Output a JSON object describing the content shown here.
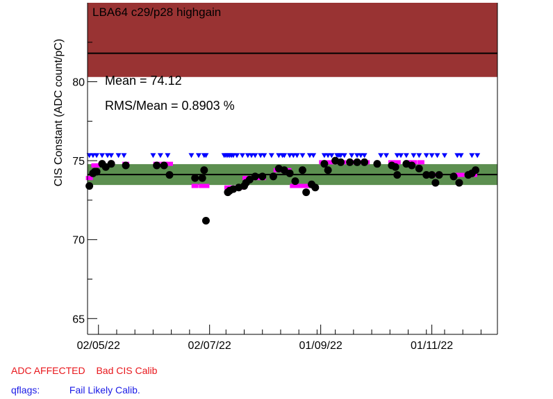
{
  "chart_data": {
    "type": "scatter",
    "title": "LBA64 c29/p28 highgain",
    "ylabel": "CIS Constant (ADC count/pC)",
    "xlabel": "",
    "ylim": [
      64,
      85
    ],
    "yticks": [
      65,
      70,
      75,
      80
    ],
    "xlim": [
      "2022-04-26",
      "2022-12-07"
    ],
    "xticks": [
      {
        "date": "2022-05-02",
        "label": "02/05/22"
      },
      {
        "date": "2022-07-02",
        "label": "02/07/22"
      },
      {
        "date": "2022-09-01",
        "label": "01/09/22"
      },
      {
        "date": "2022-11-01",
        "label": "01/11/22"
      }
    ],
    "mean": 74.12,
    "mean_label": "Mean = 74.12",
    "rms_label": "RMS/Mean = 0.8903 %",
    "band": [
      73.46,
      74.78
    ],
    "adc_affected_band": [
      80.3,
      85
    ],
    "adc_affected_line": 81.8,
    "grid": false,
    "colors": {
      "points": "#000000",
      "bad_cis": "#ff00ff",
      "fail_likely": "#0000ff",
      "band": "#5c8f50",
      "adc_band": "#993333",
      "mean_line": "#000000"
    },
    "series": [
      {
        "name": "CIS Constant",
        "marker": "circle",
        "points": [
          {
            "x": "2022-04-27",
            "y": 73.4
          },
          {
            "x": "2022-04-29",
            "y": 74.2
          },
          {
            "x": "2022-04-30",
            "y": 74.3
          },
          {
            "x": "2022-05-01",
            "y": 74.3
          },
          {
            "x": "2022-05-04",
            "y": 74.8
          },
          {
            "x": "2022-05-06",
            "y": 74.6
          },
          {
            "x": "2022-05-09",
            "y": 74.8
          },
          {
            "x": "2022-05-17",
            "y": 74.7
          },
          {
            "x": "2022-06-03",
            "y": 74.7
          },
          {
            "x": "2022-06-07",
            "y": 74.7
          },
          {
            "x": "2022-06-10",
            "y": 74.1
          },
          {
            "x": "2022-06-24",
            "y": 73.9
          },
          {
            "x": "2022-06-28",
            "y": 73.9
          },
          {
            "x": "2022-06-29",
            "y": 74.4
          },
          {
            "x": "2022-06-30",
            "y": 71.2
          },
          {
            "x": "2022-07-12",
            "y": 73.0
          },
          {
            "x": "2022-07-13",
            "y": 73.1
          },
          {
            "x": "2022-07-15",
            "y": 73.2
          },
          {
            "x": "2022-07-18",
            "y": 73.3
          },
          {
            "x": "2022-07-21",
            "y": 73.4
          },
          {
            "x": "2022-07-22",
            "y": 73.6
          },
          {
            "x": "2022-07-24",
            "y": 73.8
          },
          {
            "x": "2022-07-27",
            "y": 74.0
          },
          {
            "x": "2022-07-31",
            "y": 74.0
          },
          {
            "x": "2022-08-06",
            "y": 74.0
          },
          {
            "x": "2022-08-09",
            "y": 74.5
          },
          {
            "x": "2022-08-12",
            "y": 74.4
          },
          {
            "x": "2022-08-15",
            "y": 74.2
          },
          {
            "x": "2022-08-18",
            "y": 73.7
          },
          {
            "x": "2022-08-22",
            "y": 74.4
          },
          {
            "x": "2022-08-24",
            "y": 73.0
          },
          {
            "x": "2022-08-27",
            "y": 73.5
          },
          {
            "x": "2022-08-29",
            "y": 73.3
          },
          {
            "x": "2022-09-03",
            "y": 74.8
          },
          {
            "x": "2022-09-05",
            "y": 74.4
          },
          {
            "x": "2022-09-09",
            "y": 75.0
          },
          {
            "x": "2022-09-12",
            "y": 74.9
          },
          {
            "x": "2022-09-17",
            "y": 74.9
          },
          {
            "x": "2022-09-21",
            "y": 74.9
          },
          {
            "x": "2022-09-25",
            "y": 74.9
          },
          {
            "x": "2022-10-02",
            "y": 74.8
          },
          {
            "x": "2022-10-10",
            "y": 74.7
          },
          {
            "x": "2022-10-12",
            "y": 74.6
          },
          {
            "x": "2022-10-13",
            "y": 74.1
          },
          {
            "x": "2022-10-18",
            "y": 74.8
          },
          {
            "x": "2022-10-21",
            "y": 74.7
          },
          {
            "x": "2022-10-25",
            "y": 74.5
          },
          {
            "x": "2022-10-29",
            "y": 74.1
          },
          {
            "x": "2022-11-01",
            "y": 74.1
          },
          {
            "x": "2022-11-03",
            "y": 73.6
          },
          {
            "x": "2022-11-05",
            "y": 74.1
          },
          {
            "x": "2022-11-13",
            "y": 74.0
          },
          {
            "x": "2022-11-16",
            "y": 73.6
          },
          {
            "x": "2022-11-21",
            "y": 74.1
          },
          {
            "x": "2022-11-23",
            "y": 74.2
          },
          {
            "x": "2022-11-25",
            "y": 74.4
          }
        ]
      },
      {
        "name": "Bad CIS Calib",
        "marker": "square",
        "points": [
          {
            "x": "2022-04-27",
            "y": 73.9
          },
          {
            "x": "2022-04-30",
            "y": 74.7
          },
          {
            "x": "2022-05-01",
            "y": 74.7
          },
          {
            "x": "2022-05-04",
            "y": 74.8
          },
          {
            "x": "2022-05-09",
            "y": 74.8
          },
          {
            "x": "2022-05-17",
            "y": 74.8
          },
          {
            "x": "2022-06-03",
            "y": 74.8
          },
          {
            "x": "2022-06-07",
            "y": 74.8
          },
          {
            "x": "2022-06-10",
            "y": 74.8
          },
          {
            "x": "2022-06-24",
            "y": 73.4
          },
          {
            "x": "2022-06-28",
            "y": 73.4
          },
          {
            "x": "2022-06-30",
            "y": 73.4
          },
          {
            "x": "2022-07-12",
            "y": 73.3
          },
          {
            "x": "2022-07-14",
            "y": 73.3
          },
          {
            "x": "2022-07-16",
            "y": 73.3
          },
          {
            "x": "2022-07-19",
            "y": 73.3
          },
          {
            "x": "2022-07-22",
            "y": 73.9
          },
          {
            "x": "2022-07-25",
            "y": 73.9
          },
          {
            "x": "2022-07-28",
            "y": 73.9
          },
          {
            "x": "2022-07-31",
            "y": 73.9
          },
          {
            "x": "2022-08-08",
            "y": 74.4
          },
          {
            "x": "2022-08-11",
            "y": 74.4
          },
          {
            "x": "2022-08-14",
            "y": 74.4
          },
          {
            "x": "2022-08-17",
            "y": 73.4
          },
          {
            "x": "2022-08-20",
            "y": 73.4
          },
          {
            "x": "2022-08-23",
            "y": 73.4
          },
          {
            "x": "2022-08-26",
            "y": 73.4
          },
          {
            "x": "2022-09-02",
            "y": 74.9
          },
          {
            "x": "2022-09-06",
            "y": 74.9
          },
          {
            "x": "2022-09-10",
            "y": 74.9
          },
          {
            "x": "2022-09-13",
            "y": 74.9
          },
          {
            "x": "2022-09-18",
            "y": 74.9
          },
          {
            "x": "2022-09-22",
            "y": 74.9
          },
          {
            "x": "2022-09-26",
            "y": 74.9
          },
          {
            "x": "2022-10-10",
            "y": 74.9
          },
          {
            "x": "2022-10-13",
            "y": 74.9
          },
          {
            "x": "2022-10-19",
            "y": 74.9
          },
          {
            "x": "2022-10-22",
            "y": 74.9
          },
          {
            "x": "2022-10-26",
            "y": 74.9
          },
          {
            "x": "2022-10-30",
            "y": 74.1
          },
          {
            "x": "2022-11-02",
            "y": 74.1
          },
          {
            "x": "2022-11-05",
            "y": 74.1
          },
          {
            "x": "2022-11-14",
            "y": 74.1
          },
          {
            "x": "2022-11-17",
            "y": 74.1
          },
          {
            "x": "2022-11-22",
            "y": 74.1
          },
          {
            "x": "2022-11-24",
            "y": 74.1
          }
        ]
      },
      {
        "name": "Fail Likely Calib.",
        "marker": "triangle-down",
        "y": 75.3,
        "x": [
          "2022-04-27",
          "2022-04-29",
          "2022-05-01",
          "2022-05-04",
          "2022-05-07",
          "2022-05-09",
          "2022-05-13",
          "2022-05-16",
          "2022-06-01",
          "2022-06-05",
          "2022-06-09",
          "2022-06-22",
          "2022-06-26",
          "2022-06-29",
          "2022-06-30",
          "2022-07-10",
          "2022-07-11",
          "2022-07-12",
          "2022-07-13",
          "2022-07-14",
          "2022-07-15",
          "2022-07-17",
          "2022-07-20",
          "2022-07-23",
          "2022-07-25",
          "2022-07-27",
          "2022-07-30",
          "2022-08-01",
          "2022-08-05",
          "2022-08-09",
          "2022-08-11",
          "2022-08-12",
          "2022-08-15",
          "2022-08-17",
          "2022-08-19",
          "2022-08-22",
          "2022-08-26",
          "2022-08-28",
          "2022-09-03",
          "2022-09-05",
          "2022-09-07",
          "2022-09-10",
          "2022-09-11",
          "2022-09-12",
          "2022-09-14",
          "2022-09-18",
          "2022-09-21",
          "2022-09-23",
          "2022-09-25",
          "2022-10-04",
          "2022-10-07",
          "2022-10-13",
          "2022-10-15",
          "2022-10-18",
          "2022-10-22",
          "2022-10-25",
          "2022-10-29",
          "2022-11-01",
          "2022-11-04",
          "2022-11-08",
          "2022-11-15",
          "2022-11-17",
          "2022-11-23",
          "2022-11-26"
        ]
      }
    ]
  },
  "legend": {
    "adc_affected": "ADC AFFECTED",
    "bad_cis": "Bad CIS Calib",
    "qflags_label": "qflags:",
    "fail_likely": "Fail Likely Calib."
  }
}
